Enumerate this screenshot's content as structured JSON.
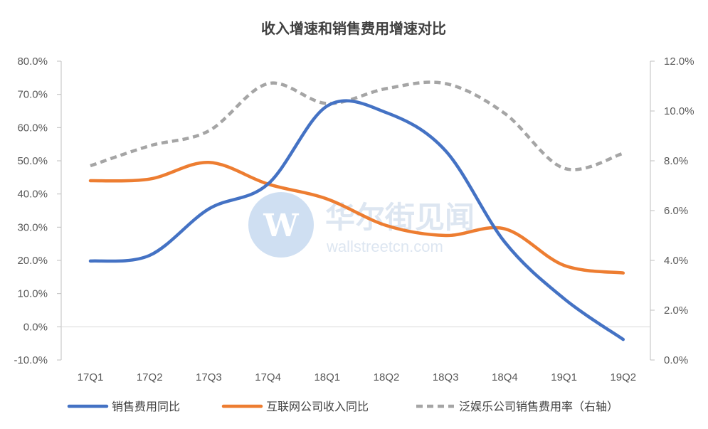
{
  "chart_data": {
    "type": "line",
    "title": "收入增速和销售费用增速对比",
    "categories": [
      "17Q1",
      "17Q2",
      "17Q3",
      "17Q4",
      "18Q1",
      "18Q2",
      "18Q3",
      "18Q4",
      "19Q1",
      "19Q2"
    ],
    "y_left": {
      "min": -10,
      "max": 80,
      "step": 10,
      "tick_labels": [
        "-10.0%",
        "0.0%",
        "10.0%",
        "20.0%",
        "30.0%",
        "40.0%",
        "50.0%",
        "60.0%",
        "70.0%",
        "80.0%"
      ]
    },
    "y_right": {
      "min": 0,
      "max": 12,
      "step": 2,
      "tick_labels": [
        "0.0%",
        "2.0%",
        "4.0%",
        "6.0%",
        "8.0%",
        "10.0%",
        "12.0%"
      ]
    },
    "series": [
      {
        "name": "销售费用同比",
        "axis": "left",
        "color": "#4472c4",
        "style": "solid",
        "values": [
          19.8,
          21.5,
          35.5,
          43.0,
          66.5,
          64.5,
          53.0,
          25.5,
          8.5,
          -3.8
        ]
      },
      {
        "name": "互联网公司收入同比",
        "axis": "left",
        "color": "#ed7d31",
        "style": "solid",
        "values": [
          44.0,
          44.5,
          49.5,
          43.0,
          38.5,
          30.5,
          27.5,
          29.5,
          18.5,
          16.2
        ]
      },
      {
        "name": "泛娱乐公司销售费用率（右轴）",
        "axis": "right",
        "color": "#a5a5a5",
        "style": "dashed",
        "values": [
          7.8,
          8.6,
          9.2,
          11.1,
          10.3,
          10.9,
          11.1,
          9.9,
          7.7,
          8.3
        ]
      }
    ],
    "grid": false,
    "legend_position": "bottom"
  },
  "watermark": {
    "logo_letter": "W",
    "name": "华尔街见闻",
    "site": "wallstreetcn.com"
  },
  "colors": {
    "axis": "#bfbfbf",
    "text": "#595959",
    "watermark_blue": "#cfdff2"
  }
}
